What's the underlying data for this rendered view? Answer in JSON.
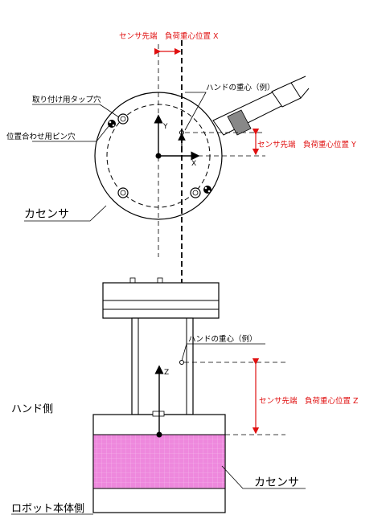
{
  "labels": {
    "sensor_tip_x": "センサ先端　負荷重心位置 X",
    "sensor_tip_y": "センサ先端　負荷重心位置 Y",
    "sensor_tip_z": "センサ先端　負荷重心位置 Z",
    "tap_hole": "取り付け用タップ穴",
    "pin_hole": "位置合わせ用ピン穴",
    "hand_cg_top": "ハンドの重心（例）",
    "hand_cg_side": "ハンドの重心（例）",
    "force_sensor_top": "カセンサ",
    "force_sensor_side": "カセンサ",
    "hand_side": "ハンド側",
    "robot_side": "ロボット本体側",
    "axis_x": "X",
    "axis_y": "Y",
    "axis_z": "Z"
  },
  "colors": {
    "dimension_red": "#e01010",
    "sensor_fill": "#ee88dd",
    "line": "#000000",
    "cable_band": "#888888"
  }
}
